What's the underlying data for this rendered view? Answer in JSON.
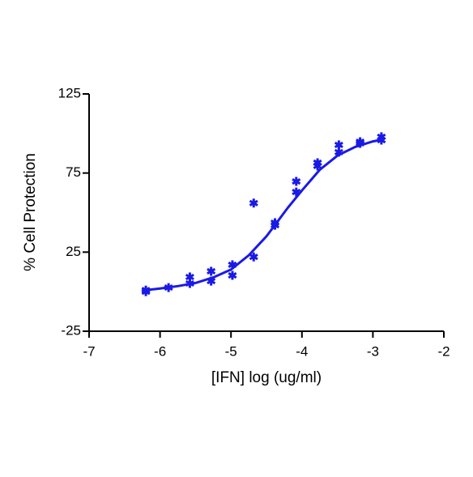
{
  "chart_data": {
    "type": "scatter",
    "x_label": "[IFN] log (ug/ml)",
    "y_label": "% Cell Protection",
    "xlim": [
      -7,
      -2
    ],
    "xticks": [
      -7,
      -6,
      -5,
      -4,
      -3,
      -2
    ],
    "ylim": [
      -25,
      125
    ],
    "yticks": [
      -25,
      25,
      75,
      125
    ],
    "series": [
      {
        "color": "#1a1ae6",
        "x": [
          -6.2,
          -6.2,
          -5.88,
          -5.58,
          -5.58,
          -5.28,
          -5.28,
          -4.98,
          -4.98,
          -4.68,
          -4.68,
          -4.38,
          -4.38,
          -4.08,
          -4.08,
          -3.78,
          -3.78,
          -3.48,
          -3.48,
          -3.18,
          -3.18,
          -2.88,
          -2.88
        ],
        "values": [
          0,
          1,
          2.6,
          9.3,
          5.2,
          12.9,
          6.7,
          17,
          10.3,
          56,
          22,
          43.6,
          42,
          69.7,
          63,
          81.5,
          79.5,
          92.8,
          88.2,
          94.8,
          93.8,
          97.9,
          95.8
        ]
      },
      {
        "type": "line",
        "color": "#1a1ae6",
        "x": [
          -6.2,
          -6,
          -5.75,
          -5.5,
          -5.25,
          -5,
          -4.75,
          -4.5,
          -4.35,
          -4.2,
          -4,
          -3.75,
          -3.5,
          -3.25,
          -3,
          -2.88
        ],
        "values": [
          1,
          2,
          3.5,
          5.5,
          9,
          14,
          23,
          35,
          44,
          53,
          64,
          77,
          86,
          91.5,
          95,
          96
        ]
      }
    ]
  }
}
